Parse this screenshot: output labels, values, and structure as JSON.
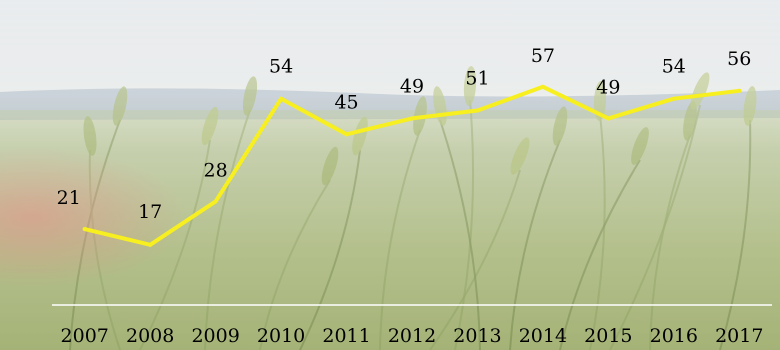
{
  "chart_data": {
    "type": "line",
    "categories": [
      "2007",
      "2008",
      "2009",
      "2010",
      "2011",
      "2012",
      "2013",
      "2014",
      "2015",
      "2016",
      "2017"
    ],
    "values": [
      21,
      17,
      28,
      54,
      45,
      49,
      51,
      57,
      49,
      54,
      56
    ],
    "data_labels": [
      "21",
      "17",
      "28",
      "54",
      "45",
      "49",
      "51",
      "57",
      "49",
      "54",
      "56"
    ],
    "title": "",
    "xlabel": "",
    "ylabel": "",
    "ylim": [
      0,
      70
    ],
    "grid": false,
    "legend": "none",
    "background": "wheat-field-photo",
    "colors": {
      "line": "#f7ef1f",
      "axis": "#ffffff",
      "text": "#000000"
    }
  }
}
